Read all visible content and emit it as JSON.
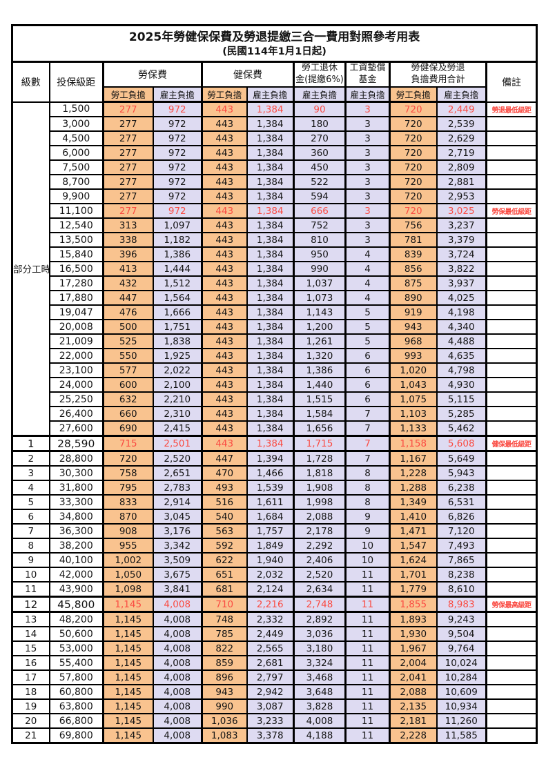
{
  "title": "2025年勞健保保費及勞退提繳三合一費用對照參考用表",
  "subtitle": "(民國114年1月1日起)",
  "colors": {
    "employee_bg": "#F9C38F",
    "employer_bg": "#DEDBF2",
    "highlight_red": "#FA4B42",
    "border": "#000000"
  },
  "header": {
    "level": "級數",
    "bracket": "投保級距",
    "labor_ins": "勞保費",
    "health_ins": "健保費",
    "pension_line1": "勞工退休",
    "pension_line2": "金(提繳6%)",
    "wage_fund_line1": "工資墊償",
    "wage_fund_line2": "基金",
    "total_line1": "勞健保及勞退",
    "total_line2": "負擔費用合計",
    "remark": "備註",
    "employee": "勞工負擔",
    "employer": "雇主負擔"
  },
  "part_time_label": "部分工時",
  "part_time_rowspan": 23,
  "column_value_types": [
    "employee",
    "employer",
    "employee",
    "employer",
    "employer",
    "employer",
    "employee",
    "employer"
  ],
  "rows": [
    {
      "level": "",
      "bracket": "1,500",
      "v": [
        "277",
        "972",
        "443",
        "1,384",
        "90",
        "3",
        "720",
        "2,449"
      ],
      "remark": "勞退最低級距",
      "red": true,
      "em": false
    },
    {
      "level": "",
      "bracket": "3,000",
      "v": [
        "277",
        "972",
        "443",
        "1,384",
        "180",
        "3",
        "720",
        "2,539"
      ],
      "remark": "",
      "red": false,
      "em": false
    },
    {
      "level": "",
      "bracket": "4,500",
      "v": [
        "277",
        "972",
        "443",
        "1,384",
        "270",
        "3",
        "720",
        "2,629"
      ],
      "remark": "",
      "red": false,
      "em": false
    },
    {
      "level": "",
      "bracket": "6,000",
      "v": [
        "277",
        "972",
        "443",
        "1,384",
        "360",
        "3",
        "720",
        "2,719"
      ],
      "remark": "",
      "red": false,
      "em": false
    },
    {
      "level": "",
      "bracket": "7,500",
      "v": [
        "277",
        "972",
        "443",
        "1,384",
        "450",
        "3",
        "720",
        "2,809"
      ],
      "remark": "",
      "red": false,
      "em": false
    },
    {
      "level": "",
      "bracket": "8,700",
      "v": [
        "277",
        "972",
        "443",
        "1,384",
        "522",
        "3",
        "720",
        "2,881"
      ],
      "remark": "",
      "red": false,
      "em": false
    },
    {
      "level": "",
      "bracket": "9,900",
      "v": [
        "277",
        "972",
        "443",
        "1,384",
        "594",
        "3",
        "720",
        "2,953"
      ],
      "remark": "",
      "red": false,
      "em": false
    },
    {
      "level": "",
      "bracket": "11,100",
      "v": [
        "277",
        "972",
        "443",
        "1,384",
        "666",
        "3",
        "720",
        "3,025"
      ],
      "remark": "勞保最低級距",
      "red": true,
      "em": false
    },
    {
      "level": "",
      "bracket": "12,540",
      "v": [
        "313",
        "1,097",
        "443",
        "1,384",
        "752",
        "3",
        "756",
        "3,237"
      ],
      "remark": "",
      "red": false,
      "em": false
    },
    {
      "level": "",
      "bracket": "13,500",
      "v": [
        "338",
        "1,182",
        "443",
        "1,384",
        "810",
        "3",
        "781",
        "3,379"
      ],
      "remark": "",
      "red": false,
      "em": false
    },
    {
      "level": "",
      "bracket": "15,840",
      "v": [
        "396",
        "1,386",
        "443",
        "1,384",
        "950",
        "4",
        "839",
        "3,724"
      ],
      "remark": "",
      "red": false,
      "em": false
    },
    {
      "level": "",
      "bracket": "16,500",
      "v": [
        "413",
        "1,444",
        "443",
        "1,384",
        "990",
        "4",
        "856",
        "3,822"
      ],
      "remark": "",
      "red": false,
      "em": false
    },
    {
      "level": "",
      "bracket": "17,280",
      "v": [
        "432",
        "1,512",
        "443",
        "1,384",
        "1,037",
        "4",
        "875",
        "3,937"
      ],
      "remark": "",
      "red": false,
      "em": false
    },
    {
      "level": "",
      "bracket": "17,880",
      "v": [
        "447",
        "1,564",
        "443",
        "1,384",
        "1,073",
        "4",
        "890",
        "4,025"
      ],
      "remark": "",
      "red": false,
      "em": false
    },
    {
      "level": "",
      "bracket": "19,047",
      "v": [
        "476",
        "1,666",
        "443",
        "1,384",
        "1,143",
        "5",
        "919",
        "4,198"
      ],
      "remark": "",
      "red": false,
      "em": false
    },
    {
      "level": "",
      "bracket": "20,008",
      "v": [
        "500",
        "1,751",
        "443",
        "1,384",
        "1,200",
        "5",
        "943",
        "4,340"
      ],
      "remark": "",
      "red": false,
      "em": false
    },
    {
      "level": "",
      "bracket": "21,009",
      "v": [
        "525",
        "1,838",
        "443",
        "1,384",
        "1,261",
        "5",
        "968",
        "4,488"
      ],
      "remark": "",
      "red": false,
      "em": false
    },
    {
      "level": "",
      "bracket": "22,000",
      "v": [
        "550",
        "1,925",
        "443",
        "1,384",
        "1,320",
        "6",
        "993",
        "4,635"
      ],
      "remark": "",
      "red": false,
      "em": false
    },
    {
      "level": "",
      "bracket": "23,100",
      "v": [
        "577",
        "2,022",
        "443",
        "1,384",
        "1,386",
        "6",
        "1,020",
        "4,798"
      ],
      "remark": "",
      "red": false,
      "em": false
    },
    {
      "level": "",
      "bracket": "24,000",
      "v": [
        "600",
        "2,100",
        "443",
        "1,384",
        "1,440",
        "6",
        "1,043",
        "4,930"
      ],
      "remark": "",
      "red": false,
      "em": false
    },
    {
      "level": "",
      "bracket": "25,250",
      "v": [
        "632",
        "2,210",
        "443",
        "1,384",
        "1,515",
        "6",
        "1,075",
        "5,115"
      ],
      "remark": "",
      "red": false,
      "em": false
    },
    {
      "level": "",
      "bracket": "26,400",
      "v": [
        "660",
        "2,310",
        "443",
        "1,384",
        "1,584",
        "7",
        "1,103",
        "5,285"
      ],
      "remark": "",
      "red": false,
      "em": false
    },
    {
      "level": "",
      "bracket": "27,600",
      "v": [
        "690",
        "2,415",
        "443",
        "1,384",
        "1,656",
        "7",
        "1,133",
        "5,462"
      ],
      "remark": "",
      "red": false,
      "em": false
    },
    {
      "level": "1",
      "bracket": "28,590",
      "v": [
        "715",
        "2,501",
        "443",
        "1,384",
        "1,715",
        "7",
        "1,158",
        "5,608"
      ],
      "remark": "健保最低級距",
      "red": true,
      "em": true
    },
    {
      "level": "2",
      "bracket": "28,800",
      "v": [
        "720",
        "2,520",
        "447",
        "1,394",
        "1,728",
        "7",
        "1,167",
        "5,649"
      ],
      "remark": "",
      "red": false,
      "em": false
    },
    {
      "level": "3",
      "bracket": "30,300",
      "v": [
        "758",
        "2,651",
        "470",
        "1,466",
        "1,818",
        "8",
        "1,228",
        "5,943"
      ],
      "remark": "",
      "red": false,
      "em": false
    },
    {
      "level": "4",
      "bracket": "31,800",
      "v": [
        "795",
        "2,783",
        "493",
        "1,539",
        "1,908",
        "8",
        "1,288",
        "6,238"
      ],
      "remark": "",
      "red": false,
      "em": false
    },
    {
      "level": "5",
      "bracket": "33,300",
      "v": [
        "833",
        "2,914",
        "516",
        "1,611",
        "1,998",
        "8",
        "1,349",
        "6,531"
      ],
      "remark": "",
      "red": false,
      "em": false
    },
    {
      "level": "6",
      "bracket": "34,800",
      "v": [
        "870",
        "3,045",
        "540",
        "1,684",
        "2,088",
        "9",
        "1,410",
        "6,826"
      ],
      "remark": "",
      "red": false,
      "em": false
    },
    {
      "level": "7",
      "bracket": "36,300",
      "v": [
        "908",
        "3,176",
        "563",
        "1,757",
        "2,178",
        "9",
        "1,471",
        "7,120"
      ],
      "remark": "",
      "red": false,
      "em": false
    },
    {
      "level": "8",
      "bracket": "38,200",
      "v": [
        "955",
        "3,342",
        "592",
        "1,849",
        "2,292",
        "10",
        "1,547",
        "7,493"
      ],
      "remark": "",
      "red": false,
      "em": false
    },
    {
      "level": "9",
      "bracket": "40,100",
      "v": [
        "1,002",
        "3,509",
        "622",
        "1,940",
        "2,406",
        "10",
        "1,624",
        "7,865"
      ],
      "remark": "",
      "red": false,
      "em": false
    },
    {
      "level": "10",
      "bracket": "42,000",
      "v": [
        "1,050",
        "3,675",
        "651",
        "2,032",
        "2,520",
        "11",
        "1,701",
        "8,238"
      ],
      "remark": "",
      "red": false,
      "em": false
    },
    {
      "level": "11",
      "bracket": "43,900",
      "v": [
        "1,098",
        "3,841",
        "681",
        "2,124",
        "2,634",
        "11",
        "1,779",
        "8,610"
      ],
      "remark": "",
      "red": false,
      "em": false
    },
    {
      "level": "12",
      "bracket": "45,800",
      "v": [
        "1,145",
        "4,008",
        "710",
        "2,216",
        "2,748",
        "11",
        "1,855",
        "8,983"
      ],
      "remark": "勞保最高級距",
      "red": true,
      "em": true
    },
    {
      "level": "13",
      "bracket": "48,200",
      "v": [
        "1,145",
        "4,008",
        "748",
        "2,332",
        "2,892",
        "11",
        "1,893",
        "9,243"
      ],
      "remark": "",
      "red": false,
      "em": false
    },
    {
      "level": "14",
      "bracket": "50,600",
      "v": [
        "1,145",
        "4,008",
        "785",
        "2,449",
        "3,036",
        "11",
        "1,930",
        "9,504"
      ],
      "remark": "",
      "red": false,
      "em": false
    },
    {
      "level": "15",
      "bracket": "53,000",
      "v": [
        "1,145",
        "4,008",
        "822",
        "2,565",
        "3,180",
        "11",
        "1,967",
        "9,764"
      ],
      "remark": "",
      "red": false,
      "em": false
    },
    {
      "level": "16",
      "bracket": "55,400",
      "v": [
        "1,145",
        "4,008",
        "859",
        "2,681",
        "3,324",
        "11",
        "2,004",
        "10,024"
      ],
      "remark": "",
      "red": false,
      "em": false
    },
    {
      "level": "17",
      "bracket": "57,800",
      "v": [
        "1,145",
        "4,008",
        "896",
        "2,797",
        "3,468",
        "11",
        "2,041",
        "10,284"
      ],
      "remark": "",
      "red": false,
      "em": false
    },
    {
      "level": "18",
      "bracket": "60,800",
      "v": [
        "1,145",
        "4,008",
        "943",
        "2,942",
        "3,648",
        "11",
        "2,088",
        "10,609"
      ],
      "remark": "",
      "red": false,
      "em": false
    },
    {
      "level": "19",
      "bracket": "63,800",
      "v": [
        "1,145",
        "4,008",
        "990",
        "3,087",
        "3,828",
        "11",
        "2,135",
        "10,934"
      ],
      "remark": "",
      "red": false,
      "em": false
    },
    {
      "level": "20",
      "bracket": "66,800",
      "v": [
        "1,145",
        "4,008",
        "1,036",
        "3,233",
        "4,008",
        "11",
        "2,181",
        "11,260"
      ],
      "remark": "",
      "red": false,
      "em": false
    },
    {
      "level": "21",
      "bracket": "69,800",
      "v": [
        "1,145",
        "4,008",
        "1,083",
        "3,378",
        "4,188",
        "11",
        "2,228",
        "11,585"
      ],
      "remark": "",
      "red": false,
      "em": false
    }
  ]
}
